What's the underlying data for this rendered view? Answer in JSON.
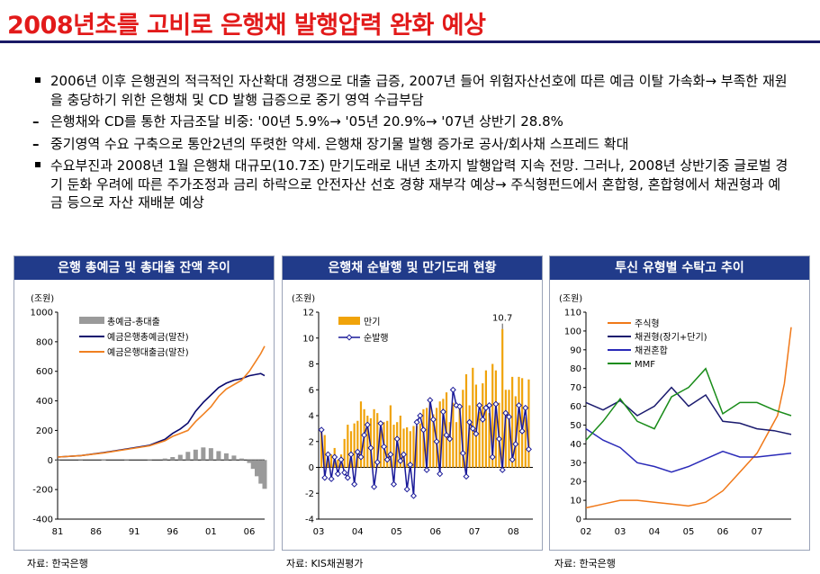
{
  "page": {
    "title": "2008년초를 고비로 은행채 발행압력 완화 예상",
    "bullets": [
      {
        "marker": "square",
        "text": "2006년 이후 은행권의 적극적인 자산확대 경쟁으로 대출 급증, 2007년 들어 위험자산선호에 따른 예금 이탈 가속화→ 부족한 재원을 충당하기 위한 은행채 및 CD 발행 급증으로 중기 영역 수급부담"
      },
      {
        "marker": "dash",
        "text": "은행채와 CD를 통한 자금조달 비중: '00년 5.9%→ '05년 20.9%→ '07년 상반기 28.8%"
      },
      {
        "marker": "dash",
        "text": "중기영역 수요 구축으로 통안2년의 뚜렷한 약세. 은행채 장기물 발행 증가로 공사/회사채 스프레드 확대"
      },
      {
        "marker": "square",
        "text": "수요부진과 2008년 1월 은행채 대규모(10.7조) 만기도래로 내년 초까지 발행압력 지속 전망. 그러나, 2008년 상반기중 글로벌 경기 둔화 우려에 따른 주가조정과 금리 하락으로 안전자산 선호 경향 재부각 예상→ 주식형펀드에서 혼합형, 혼합형에서 채권형과 예금 등으로 자산 재배분 예상"
      }
    ],
    "sources": [
      "자료: 한국은행",
      "자료: KIS채권평가",
      "자료: 한국은행"
    ]
  },
  "chart_data": [
    {
      "type": "line",
      "title": "은행 총예금 및 총대출 잔액 추이",
      "unit": "(조원)",
      "x_ticks": [
        "81",
        "86",
        "91",
        "96",
        "01",
        "06"
      ],
      "x_range": [
        1981,
        2008
      ],
      "y_ticks": [
        -400,
        -200,
        0,
        200,
        400,
        600,
        800,
        1000
      ],
      "ylim": [
        -400,
        1000
      ],
      "legend": "top-left",
      "series": [
        {
          "name": "총예금-총대출",
          "kind": "bar",
          "color": "#9a9a9a",
          "x": [
            1981,
            1984,
            1987,
            1990,
            1993,
            1995,
            1996,
            1997,
            1998,
            1999,
            2000,
            2001,
            2002,
            2003,
            2004,
            2005,
            2006,
            2006.5,
            2007,
            2007.5,
            2008
          ],
          "values": [
            0,
            0,
            2,
            3,
            4,
            10,
            20,
            35,
            55,
            70,
            85,
            80,
            60,
            45,
            30,
            10,
            -20,
            -60,
            -110,
            -160,
            -195
          ]
        },
        {
          "name": "예금은행총예금(말잔)",
          "kind": "line",
          "color": "#0a0a6e",
          "x": [
            1981,
            1984,
            1987,
            1990,
            1993,
            1995,
            1996,
            1997,
            1998,
            1999,
            2000,
            2001,
            2002,
            2003,
            2004,
            2005,
            2006,
            2007,
            2007.5,
            2008
          ],
          "values": [
            20,
            30,
            50,
            75,
            100,
            140,
            180,
            210,
            250,
            330,
            390,
            440,
            490,
            520,
            540,
            550,
            570,
            580,
            585,
            570
          ]
        },
        {
          "name": "예금은행대출금(말잔)",
          "kind": "line",
          "color": "#f08020",
          "x": [
            1981,
            1984,
            1987,
            1990,
            1993,
            1995,
            1996,
            1997,
            1998,
            1999,
            2000,
            2001,
            2002,
            2003,
            2004,
            2005,
            2006,
            2007,
            2007.5,
            2008
          ],
          "values": [
            20,
            30,
            48,
            72,
            96,
            130,
            160,
            180,
            200,
            260,
            310,
            360,
            430,
            480,
            510,
            540,
            600,
            680,
            720,
            770
          ]
        }
      ]
    },
    {
      "type": "bar",
      "title": "은행채 순발행 및 만기도래 현황",
      "unit": "(조원)",
      "x_ticks": [
        "03",
        "04",
        "05",
        "06",
        "07",
        "08"
      ],
      "x_range": [
        2003,
        2008.5
      ],
      "y_ticks": [
        -4,
        -2,
        0,
        2,
        4,
        6,
        8,
        10,
        12
      ],
      "ylim": [
        -4,
        12
      ],
      "legend": "top-left",
      "annotation": "10.7",
      "series": [
        {
          "name": "만기",
          "kind": "bar",
          "color": "#f0a30a",
          "values": [
            3.0,
            2.5,
            1.2,
            1.0,
            1.5,
            0.6,
            1.0,
            2.2,
            3.3,
            2.8,
            3.4,
            3.6,
            5.1,
            4.5,
            4.0,
            3.8,
            4.5,
            4.2,
            3.0,
            3.5,
            3.6,
            4.8,
            3.3,
            3.5,
            4.0,
            3.0,
            3.1,
            2.8,
            3.2,
            3.2,
            3.4,
            4.5,
            4.6,
            5.4,
            4.1,
            4.6,
            5.1,
            5.3,
            5.8,
            3.5,
            5.0,
            3.5,
            4.7,
            6.0,
            7.2,
            4.8,
            7.7,
            6.4,
            4.3,
            6.5,
            7.5,
            4.2,
            8.0,
            7.5,
            5.0,
            10.7,
            6.0,
            6.0,
            7.0,
            5.5,
            7.0,
            6.9,
            3.9,
            6.8
          ]
        },
        {
          "name": "순발행",
          "kind": "line",
          "color": "#1a1a99",
          "values": [
            2.9,
            -0.8,
            1.0,
            -0.9,
            0.8,
            -0.5,
            0.6,
            -0.4,
            -0.8,
            1.0,
            -1.3,
            1.2,
            0.8,
            2.5,
            3.3,
            1.5,
            -1.5,
            0.4,
            3.4,
            1.6,
            0.6,
            1.0,
            -1.3,
            2.2,
            0.5,
            1.0,
            -1.7,
            0.2,
            -2.2,
            3.5,
            4.0,
            2.9,
            -0.2,
            5.2,
            3.7,
            2.0,
            -0.5,
            4.3,
            2.5,
            2.2,
            6.0,
            4.8,
            4.7,
            1.1,
            -0.7,
            3.5,
            3.0,
            2.6,
            4.8,
            3.7,
            4.6,
            4.8,
            0.8,
            4.9,
            2.2,
            -0.2,
            4.2,
            3.9,
            0.6,
            1.8,
            4.8,
            2.8,
            4.6,
            1.4
          ]
        }
      ]
    },
    {
      "type": "line",
      "title": "투신 유형별 수탁고 추이",
      "unit": "(조원)",
      "x_ticks": [
        "02",
        "03",
        "04",
        "05",
        "06",
        "07"
      ],
      "x_range": [
        2002,
        2008
      ],
      "y_ticks": [
        0,
        10,
        20,
        30,
        40,
        50,
        60,
        70,
        80,
        90,
        100,
        110
      ],
      "ylim": [
        0,
        110
      ],
      "legend": "top-left",
      "series": [
        {
          "name": "주식형",
          "color": "#f07818",
          "x": [
            2002,
            2002.5,
            2003,
            2003.5,
            2004,
            2004.5,
            2005,
            2005.5,
            2006,
            2006.5,
            2007,
            2007.3,
            2007.6,
            2007.8,
            2008
          ],
          "values": [
            6,
            8,
            10,
            10,
            9,
            8,
            7,
            9,
            15,
            25,
            35,
            45,
            55,
            72,
            102
          ]
        },
        {
          "name": "채권형(장기+단기)",
          "color": "#1a1a6e",
          "x": [
            2002,
            2002.5,
            2003,
            2003.5,
            2004,
            2004.5,
            2005,
            2005.5,
            2006,
            2006.5,
            2007,
            2007.5,
            2008
          ],
          "values": [
            62,
            58,
            63,
            55,
            60,
            70,
            60,
            66,
            52,
            51,
            48,
            47,
            45
          ]
        },
        {
          "name": "채권혼합",
          "color": "#2a2ab8",
          "x": [
            2002,
            2002.5,
            2003,
            2003.5,
            2004,
            2004.5,
            2005,
            2005.5,
            2006,
            2006.5,
            2007,
            2007.5,
            2008
          ],
          "values": [
            48,
            42,
            38,
            30,
            28,
            25,
            28,
            32,
            36,
            33,
            33,
            34,
            35
          ]
        },
        {
          "name": "MMF",
          "color": "#1a8c1a",
          "x": [
            2002,
            2002.5,
            2003,
            2003.5,
            2004,
            2004.5,
            2005,
            2005.5,
            2006,
            2006.5,
            2007,
            2007.5,
            2008
          ],
          "values": [
            42,
            52,
            64,
            52,
            48,
            65,
            70,
            80,
            56,
            62,
            62,
            58,
            55
          ]
        }
      ]
    }
  ]
}
